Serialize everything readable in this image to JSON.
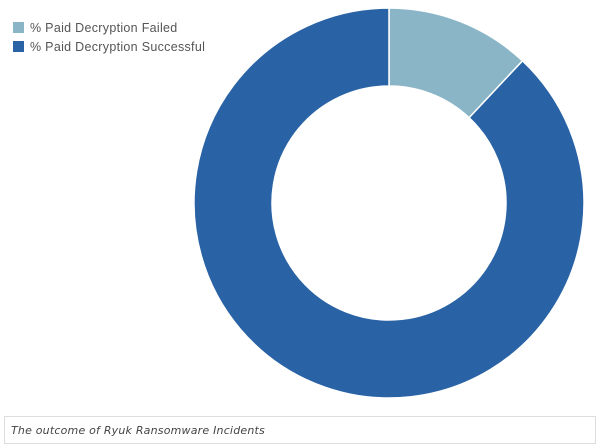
{
  "chart_data": {
    "type": "pie",
    "categories": [
      "% Paid Decryption Failed",
      "% Paid Decryption Successful"
    ],
    "values": [
      12,
      88
    ],
    "colors": [
      "#8ab5c6",
      "#2963a5"
    ],
    "legend_position": "top-left",
    "title": "",
    "caption": "The outcome of Ryuk Ransomware Incidents"
  }
}
